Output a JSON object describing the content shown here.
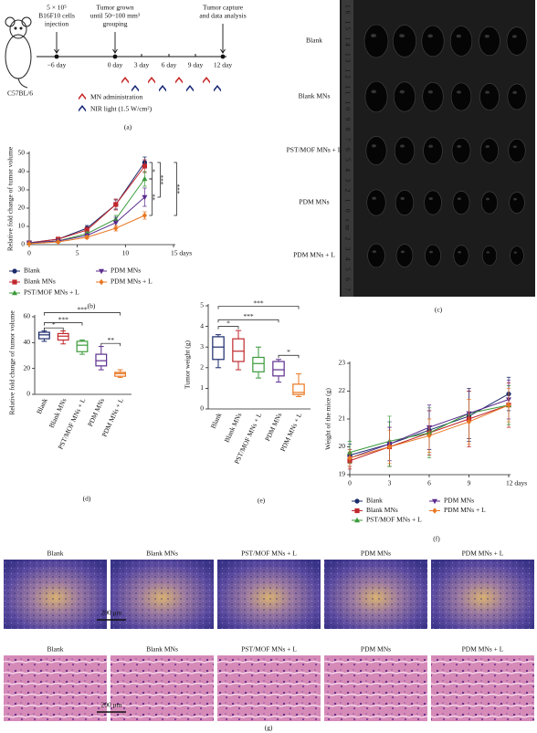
{
  "timeline": {
    "injection": [
      "5 × 10⁵",
      "B16F10 cells",
      "injection"
    ],
    "grouping": [
      "Tumor grown",
      "until 50~100 mm³",
      "grouping"
    ],
    "capture": [
      "Tumor capture",
      "and data analysis"
    ],
    "days": [
      "−6 day",
      "0 day",
      "3 day",
      "6 day",
      "9 day",
      "12 day"
    ],
    "strain": "C57BL/6",
    "legend": [
      "MN administration",
      "NIR light (1.5 W/cm²)"
    ],
    "label": "(a)"
  },
  "photo": {
    "groups": [
      "Blank",
      "Blank MNs",
      "PST/MOF MNs + L",
      "PDM MNs",
      "PDM MNs + L"
    ],
    "ruler": "16 15 14 13 12 11 10 9 8 7 6 5 4 3 2 1 0 cm 2 3 4 5 6 7",
    "label": "(c)"
  },
  "histology": {
    "groups": [
      "Blank",
      "Blank MNs",
      "PST/MOF MNs + L",
      "PDM MNs",
      "PDM MNs + L"
    ],
    "scale": "200 μm",
    "label": "(g)"
  },
  "chart_data": [
    {
      "type": "line",
      "panel_label": "(b)",
      "y_label": "Relative fold change of tumor volume",
      "x": [
        0,
        3,
        6,
        9,
        12
      ],
      "xlim": [
        0,
        15
      ],
      "xticks": [
        0,
        5,
        10,
        {
          "value": 15,
          "label": "15 days"
        }
      ],
      "ylim": [
        0,
        50
      ],
      "yticks": [
        0,
        10,
        20,
        30,
        40,
        50
      ],
      "series": [
        {
          "name": "Blank",
          "color": "#1b2a6b",
          "marker": "circle",
          "values": [
            1,
            3,
            9,
            22,
            45
          ],
          "errors": [
            0.3,
            0.5,
            1.5,
            2.5,
            3
          ]
        },
        {
          "name": "Blank MNs",
          "color": "#c0282d",
          "marker": "square",
          "values": [
            1,
            3,
            8,
            22,
            43
          ],
          "errors": [
            0.3,
            0.5,
            1.5,
            3,
            3.5
          ]
        },
        {
          "name": "PST/MOF MNs + L",
          "color": "#3a9a3a",
          "marker": "triangle",
          "values": [
            1,
            2,
            6,
            14,
            36
          ],
          "errors": [
            0.2,
            0.5,
            1,
            2,
            4
          ]
        },
        {
          "name": "PDM MNs",
          "color": "#5b2d8e",
          "marker": "triangle-down",
          "values": [
            1,
            2,
            5,
            12,
            26
          ],
          "errors": [
            0.2,
            0.4,
            1,
            3,
            5
          ]
        },
        {
          "name": "PDM MNs + L",
          "color": "#e87722",
          "marker": "diamond",
          "values": [
            0.5,
            1.5,
            4,
            9,
            16
          ],
          "errors": [
            0.1,
            0.3,
            0.8,
            1.5,
            2
          ]
        }
      ],
      "annotations": [
        {
          "text": "*",
          "from": "Blank",
          "to": "PST/MOF MNs + L"
        },
        {
          "text": "***",
          "from": "Blank",
          "to": "PDM MNs"
        },
        {
          "text": "**",
          "from": "PST/MOF MNs + L",
          "to": "PDM MNs + L"
        },
        {
          "text": "***",
          "from": "Blank",
          "to": "PDM MNs + L"
        }
      ]
    },
    {
      "type": "box",
      "panel_label": "(d)",
      "y_label": "Relative fold change of tumor volume",
      "categories": [
        "Blank",
        "Blank MNs",
        "PST/MOF MNs + L",
        "PDM MNs",
        "PDM MNs + L"
      ],
      "colors": [
        "#1b2a6b",
        "#c0282d",
        "#3a9a3a",
        "#5b2d8e",
        "#e87722"
      ],
      "ylim": [
        0,
        60
      ],
      "yticks": [
        0,
        20,
        40,
        60
      ],
      "stats": [
        {
          "min": 41,
          "q1": 43,
          "median": 46,
          "q3": 48,
          "max": 49
        },
        {
          "min": 39,
          "q1": 42,
          "median": 45,
          "q3": 47,
          "max": 49
        },
        {
          "min": 31,
          "q1": 33,
          "median": 38,
          "q3": 41,
          "max": 42
        },
        {
          "min": 19,
          "q1": 22,
          "median": 26,
          "q3": 31,
          "max": 37
        },
        {
          "min": 13,
          "q1": 14,
          "median": 16,
          "q3": 17,
          "max": 19
        }
      ],
      "annotations": [
        {
          "text": "*",
          "from": "Blank",
          "to": "Blank MNs",
          "color": "#c0282d"
        },
        {
          "text": "***",
          "from": "Blank",
          "to": "PST/MOF MNs + L"
        },
        {
          "text": "***",
          "from": "Blank",
          "to": "PDM MNs + L"
        },
        {
          "text": "**",
          "from": "PDM MNs",
          "to": "PDM MNs + L"
        }
      ]
    },
    {
      "type": "box",
      "panel_label": "(e)",
      "y_label": "Tumor weight (g)",
      "categories": [
        "Blank",
        "Blank MNs",
        "PST/MOF MNs + L",
        "PDM MNs",
        "PDM MNs + L"
      ],
      "colors": [
        "#1b2a6b",
        "#c0282d",
        "#3a9a3a",
        "#5b2d8e",
        "#e87722"
      ],
      "ylim": [
        0,
        5
      ],
      "yticks": [
        0,
        1,
        2,
        3,
        4,
        5
      ],
      "stats": [
        {
          "min": 2.0,
          "q1": 2.4,
          "median": 3.0,
          "q3": 3.5,
          "max": 3.6
        },
        {
          "min": 1.9,
          "q1": 2.3,
          "median": 2.8,
          "q3": 3.4,
          "max": 3.8
        },
        {
          "min": 1.5,
          "q1": 1.8,
          "median": 2.2,
          "q3": 2.5,
          "max": 3.0
        },
        {
          "min": 1.3,
          "q1": 1.6,
          "median": 1.9,
          "q3": 2.3,
          "max": 2.4
        },
        {
          "min": 0.6,
          "q1": 0.7,
          "median": 0.8,
          "q3": 1.2,
          "max": 1.7
        }
      ],
      "annotations": [
        {
          "text": "*",
          "from": "Blank",
          "to": "Blank MNs"
        },
        {
          "text": "***",
          "from": "Blank",
          "to": "PDM MNs"
        },
        {
          "text": "***",
          "from": "Blank",
          "to": "PDM MNs + L"
        },
        {
          "text": "*",
          "from": "PDM MNs",
          "to": "PDM MNs + L"
        }
      ]
    },
    {
      "type": "line",
      "panel_label": "(f)",
      "y_label": "Weight of the mice (g)",
      "x": [
        0,
        3,
        6,
        9,
        12
      ],
      "xlim": [
        0,
        12
      ],
      "xticks": [
        0,
        3,
        6,
        9,
        {
          "value": 12,
          "label": "12 days"
        }
      ],
      "ylim": [
        19,
        23
      ],
      "yticks": [
        19,
        20,
        21,
        22,
        23
      ],
      "series": [
        {
          "name": "Blank",
          "color": "#1b2a6b",
          "marker": "circle",
          "values": [
            19.7,
            20.1,
            20.6,
            21.1,
            21.9
          ],
          "errors": [
            0.4,
            0.8,
            0.7,
            0.9,
            0.6
          ]
        },
        {
          "name": "Blank MNs",
          "color": "#c0282d",
          "marker": "square",
          "values": [
            19.5,
            20.0,
            20.5,
            21.0,
            21.5
          ],
          "errors": [
            0.3,
            0.7,
            0.8,
            1.0,
            0.8
          ]
        },
        {
          "name": "PST/MOF MNs + L",
          "color": "#3a9a3a",
          "marker": "triangle",
          "values": [
            19.8,
            20.2,
            20.5,
            21.2,
            21.5
          ],
          "errors": [
            0.4,
            0.9,
            0.9,
            0.9,
            0.7
          ]
        },
        {
          "name": "PDM MNs",
          "color": "#5b2d8e",
          "marker": "triangle-down",
          "values": [
            19.6,
            20.1,
            20.7,
            21.2,
            21.7
          ],
          "errors": [
            0.3,
            0.6,
            0.8,
            0.9,
            0.7
          ]
        },
        {
          "name": "PDM MNs + L",
          "color": "#e87722",
          "marker": "diamond",
          "values": [
            19.6,
            20.0,
            20.4,
            20.9,
            21.5
          ],
          "errors": [
            0.3,
            0.6,
            0.6,
            0.8,
            0.6
          ]
        }
      ],
      "annotations": []
    }
  ]
}
